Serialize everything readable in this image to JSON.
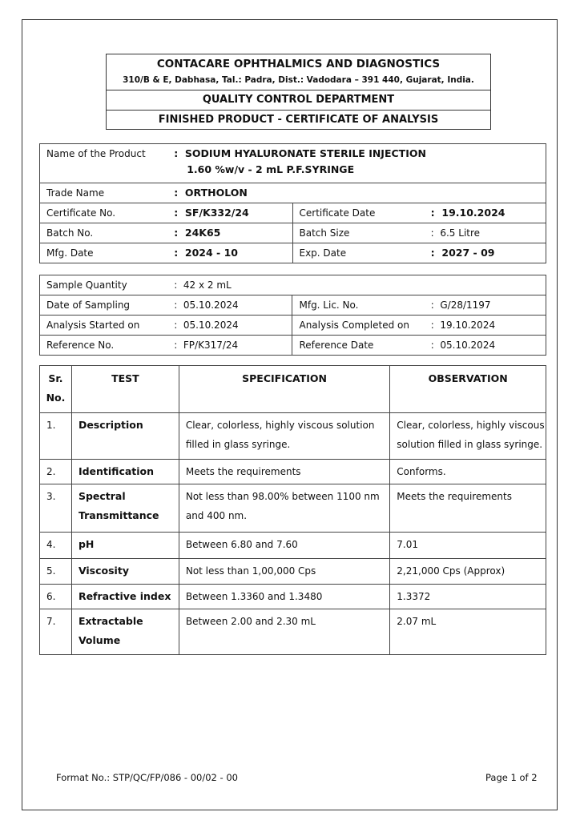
{
  "header": {
    "company": "CONTACARE OPHTHALMICS AND DIAGNOSTICS",
    "address": "310/B & E, Dabhasa, Tal.: Padra, Dist.: Vadodara –  391 440, Gujarat, India.",
    "department": "QUALITY CONTROL DEPARTMENT",
    "document_title": "FINISHED PRODUCT - CERTIFICATE OF ANALYSIS"
  },
  "product": {
    "name_label": "Name of the Product",
    "name_line1": "SODIUM HYALURONATE STERILE INJECTION",
    "name_line2": "1.60 %w/v - 2 mL P.F.SYRINGE",
    "trade_label": "Trade Name",
    "trade": "ORTHOLON",
    "cert_no_label": "Certificate No.",
    "cert_no": "SF/K332/24",
    "cert_date_label": "Certificate Date",
    "cert_date": "19.10.2024",
    "batch_no_label": "Batch No.",
    "batch_no": "24K65",
    "batch_size_label": "Batch Size",
    "batch_size": "6.5 Litre",
    "mfg_date_label": "Mfg. Date",
    "mfg_date": "2024 - 10",
    "exp_date_label": "Exp. Date",
    "exp_date": "2027 - 09"
  },
  "sample": {
    "qty_label": "Sample Quantity",
    "qty": "42 x 2 mL",
    "sampling_label": "Date of Sampling",
    "sampling": "05.10.2024",
    "lic_label": "Mfg. Lic. No.",
    "lic": "G/28/1197",
    "started_label": "Analysis Started on",
    "started": "05.10.2024",
    "completed_label": "Analysis Completed on",
    "completed": "19.10.2024",
    "ref_no_label": "Reference No.",
    "ref_no": "FP/K317/24",
    "ref_date_label": "Reference Date",
    "ref_date": "05.10.2024"
  },
  "tests": {
    "headers": {
      "sr1": "Sr.",
      "sr2": "No.",
      "test": "TEST",
      "spec": "SPECIFICATION",
      "obs": "OBSERVATION"
    },
    "rows": [
      {
        "sr": "1.",
        "test": "Description",
        "spec": "Clear, colorless, highly viscous solution filled in glass syringe.",
        "obs": "Clear, colorless, highly viscous solution filled in glass syringe."
      },
      {
        "sr": "2.",
        "test": "Identification",
        "spec": "Meets the requirements",
        "obs": "Conforms."
      },
      {
        "sr": "3.",
        "test": "Spectral Transmittance",
        "spec": "Not less than 98.00% between 1100 nm and 400 nm.",
        "obs": "Meets the requirements"
      },
      {
        "sr": "4.",
        "test": "pH",
        "spec": "Between 6.80 and 7.60",
        "obs": "7.01"
      },
      {
        "sr": "5.",
        "test": "Viscosity",
        "spec": "Not less than 1,00,000 Cps",
        "obs": "2,21,000 Cps (Approx)"
      },
      {
        "sr": "6.",
        "test": "Refractive index",
        "spec": "Between 1.3360 and 1.3480",
        "obs": "1.3372"
      },
      {
        "sr": "7.",
        "test": "Extractable Volume",
        "spec": "Between 2.00 and 2.30 mL",
        "obs": "2.07 mL"
      }
    ]
  },
  "footer": {
    "format_no": "Format No.: STP/QC/FP/086 - 00/02 - 00",
    "page": "Page 1 of 2"
  },
  "colon": ":"
}
